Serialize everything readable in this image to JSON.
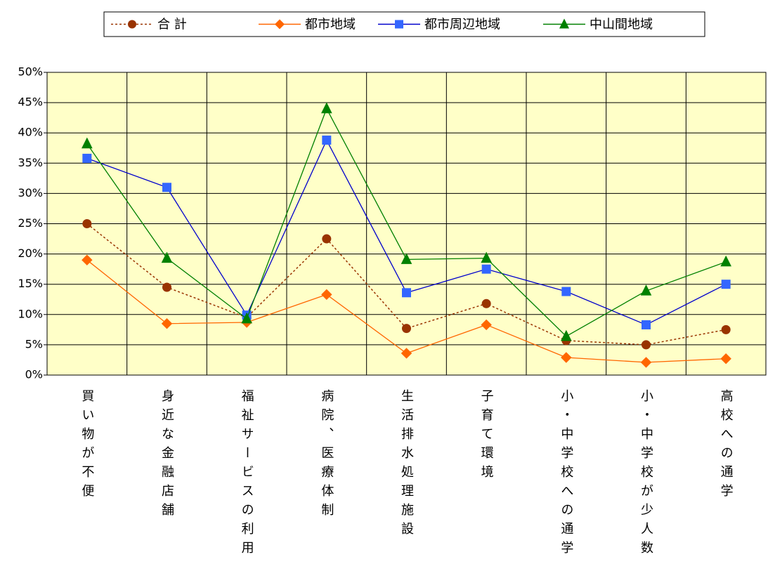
{
  "chart_data": {
    "type": "line",
    "categories": [
      "買い物が不便",
      "身近な金融店舗",
      "福祉サービスの利用",
      "病院、医療体制",
      "生活排水処理施設",
      "子育て環境",
      "小・中学校への通学",
      "小・中学校が少人数",
      "高校への通学"
    ],
    "series": [
      {
        "name": "合 計",
        "color": "#993300",
        "marker": "circle",
        "dashed": true,
        "values": [
          25,
          14.5,
          9.5,
          22.5,
          7.7,
          11.8,
          5.7,
          5.0,
          7.5
        ]
      },
      {
        "name": "都市地域",
        "color": "#ff6600",
        "marker": "diamond",
        "dashed": false,
        "values": [
          19,
          8.5,
          8.7,
          13.3,
          3.6,
          8.3,
          2.9,
          2.1,
          2.7
        ]
      },
      {
        "name": "都市周辺地域",
        "color": "#0000cc",
        "marker_color": "#3366ff",
        "marker": "square",
        "dashed": false,
        "values": [
          35.8,
          31.0,
          9.9,
          38.8,
          13.6,
          17.5,
          13.8,
          8.3,
          15.0
        ]
      },
      {
        "name": "中山間地域",
        "color": "#008000",
        "marker": "triangle",
        "dashed": false,
        "values": [
          38.2,
          19.3,
          9.3,
          44.0,
          19.1,
          19.3,
          6.4,
          13.9,
          18.7
        ]
      }
    ],
    "ylim": [
      0,
      50
    ],
    "yticks": [
      {
        "value": 0,
        "label": "0%"
      },
      {
        "value": 5,
        "label": "5%"
      },
      {
        "value": 10,
        "label": "10%"
      },
      {
        "value": 15,
        "label": "15%"
      },
      {
        "value": 20,
        "label": "20%"
      },
      {
        "value": 25,
        "label": "25%"
      },
      {
        "value": 30,
        "label": "30%"
      },
      {
        "value": 35,
        "label": "35%"
      },
      {
        "value": 40,
        "label": "40%"
      },
      {
        "value": 45,
        "label": "45%"
      },
      {
        "value": 50,
        "label": "50%"
      }
    ],
    "grid": true,
    "legend": "top",
    "plot_background": "#ffffc8"
  }
}
